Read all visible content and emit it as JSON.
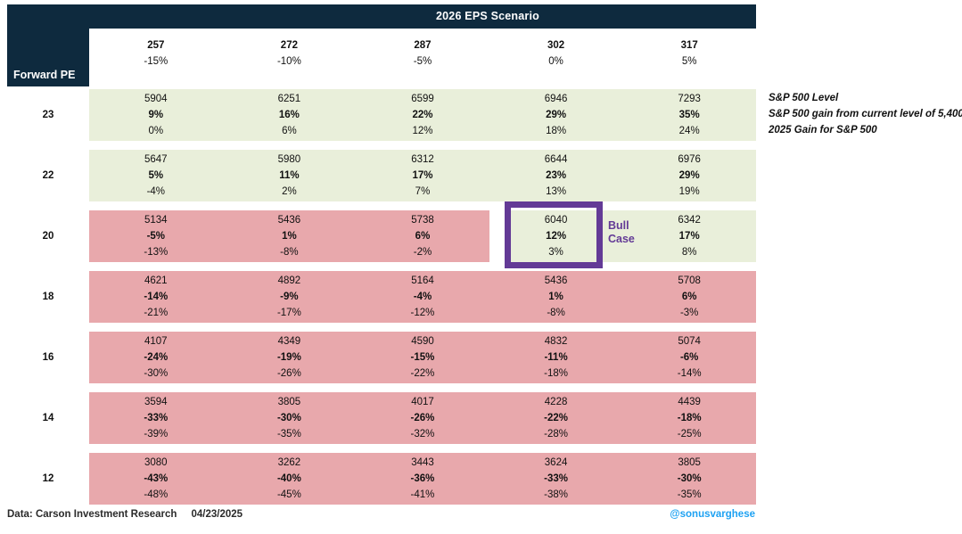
{
  "title": "2026 EPS Scenario",
  "corner_label": "Forward PE",
  "chart_data": {
    "type": "heatmap",
    "title": "2026 EPS Scenario",
    "x_axis_label": "2026 EPS Scenario",
    "y_axis_label": "Forward PE",
    "x_categories_eps": [
      "257",
      "272",
      "287",
      "302",
      "317"
    ],
    "x_categories_eps_change": [
      "-15%",
      "-10%",
      "-5%",
      "0%",
      "5%"
    ],
    "y_categories_forward_pe": [
      "23",
      "22",
      "20",
      "18",
      "16",
      "14",
      "12"
    ],
    "cell_value_meanings": [
      "S&P 500 Level",
      "S&P 500 gain from current level of 5,400",
      "2025 Gain for S&P 500"
    ],
    "rows": [
      {
        "pe": "23",
        "cells": [
          {
            "level": "5904",
            "gain": "9%",
            "gain_2025": "0%",
            "tone": "green"
          },
          {
            "level": "6251",
            "gain": "16%",
            "gain_2025": "6%",
            "tone": "green"
          },
          {
            "level": "6599",
            "gain": "22%",
            "gain_2025": "12%",
            "tone": "green"
          },
          {
            "level": "6946",
            "gain": "29%",
            "gain_2025": "18%",
            "tone": "green"
          },
          {
            "level": "7293",
            "gain": "35%",
            "gain_2025": "24%",
            "tone": "green"
          }
        ]
      },
      {
        "pe": "22",
        "cells": [
          {
            "level": "5647",
            "gain": "5%",
            "gain_2025": "-4%",
            "tone": "green"
          },
          {
            "level": "5980",
            "gain": "11%",
            "gain_2025": "2%",
            "tone": "green"
          },
          {
            "level": "6312",
            "gain": "17%",
            "gain_2025": "7%",
            "tone": "green"
          },
          {
            "level": "6644",
            "gain": "23%",
            "gain_2025": "13%",
            "tone": "green"
          },
          {
            "level": "6976",
            "gain": "29%",
            "gain_2025": "19%",
            "tone": "green"
          }
        ]
      },
      {
        "pe": "20",
        "cells": [
          {
            "level": "5134",
            "gain": "-5%",
            "gain_2025": "-13%",
            "tone": "pink"
          },
          {
            "level": "5436",
            "gain": "1%",
            "gain_2025": "-8%",
            "tone": "pink"
          },
          {
            "level": "5738",
            "gain": "6%",
            "gain_2025": "-2%",
            "tone": "pink"
          },
          {
            "level": "6040",
            "gain": "12%",
            "gain_2025": "3%",
            "tone": "green"
          },
          {
            "level": "6342",
            "gain": "17%",
            "gain_2025": "8%",
            "tone": "green"
          }
        ]
      },
      {
        "pe": "18",
        "cells": [
          {
            "level": "4621",
            "gain": "-14%",
            "gain_2025": "-21%",
            "tone": "pink"
          },
          {
            "level": "4892",
            "gain": "-9%",
            "gain_2025": "-17%",
            "tone": "pink"
          },
          {
            "level": "5164",
            "gain": "-4%",
            "gain_2025": "-12%",
            "tone": "pink"
          },
          {
            "level": "5436",
            "gain": "1%",
            "gain_2025": "-8%",
            "tone": "pink"
          },
          {
            "level": "5708",
            "gain": "6%",
            "gain_2025": "-3%",
            "tone": "pink"
          }
        ]
      },
      {
        "pe": "16",
        "cells": [
          {
            "level": "4107",
            "gain": "-24%",
            "gain_2025": "-30%",
            "tone": "pink"
          },
          {
            "level": "4349",
            "gain": "-19%",
            "gain_2025": "-26%",
            "tone": "pink"
          },
          {
            "level": "4590",
            "gain": "-15%",
            "gain_2025": "-22%",
            "tone": "pink"
          },
          {
            "level": "4832",
            "gain": "-11%",
            "gain_2025": "-18%",
            "tone": "pink"
          },
          {
            "level": "5074",
            "gain": "-6%",
            "gain_2025": "-14%",
            "tone": "pink"
          }
        ]
      },
      {
        "pe": "14",
        "cells": [
          {
            "level": "3594",
            "gain": "-33%",
            "gain_2025": "-39%",
            "tone": "pink"
          },
          {
            "level": "3805",
            "gain": "-30%",
            "gain_2025": "-35%",
            "tone": "pink"
          },
          {
            "level": "4017",
            "gain": "-26%",
            "gain_2025": "-32%",
            "tone": "pink"
          },
          {
            "level": "4228",
            "gain": "-22%",
            "gain_2025": "-28%",
            "tone": "pink"
          },
          {
            "level": "4439",
            "gain": "-18%",
            "gain_2025": "-25%",
            "tone": "pink"
          }
        ]
      },
      {
        "pe": "12",
        "cells": [
          {
            "level": "3080",
            "gain": "-43%",
            "gain_2025": "-48%",
            "tone": "pink"
          },
          {
            "level": "3262",
            "gain": "-40%",
            "gain_2025": "-45%",
            "tone": "pink"
          },
          {
            "level": "3443",
            "gain": "-36%",
            "gain_2025": "-41%",
            "tone": "pink"
          },
          {
            "level": "3624",
            "gain": "-33%",
            "gain_2025": "-38%",
            "tone": "pink"
          },
          {
            "level": "3805",
            "gain": "-30%",
            "gain_2025": "-35%",
            "tone": "pink"
          }
        ]
      }
    ],
    "highlight": {
      "label": "Bull Case",
      "pe": "20",
      "eps": "302",
      "level": "6040"
    }
  },
  "annotations": [
    "S&P 500 Level",
    "S&P 500 gain from current level of 5,400",
    "2025 Gain for S&P 500"
  ],
  "footer": {
    "source": "Data: Carson Investment Research",
    "date": "04/23/2025",
    "handle": "@sonusvarghese"
  },
  "colors": {
    "header_navy": "#0e2a3e",
    "positive_green": "#e9efda",
    "negative_pink": "#e8a8ac",
    "highlight_purple": "#633a96",
    "handle_blue": "#1da1f2",
    "text_dark": "#111111"
  }
}
